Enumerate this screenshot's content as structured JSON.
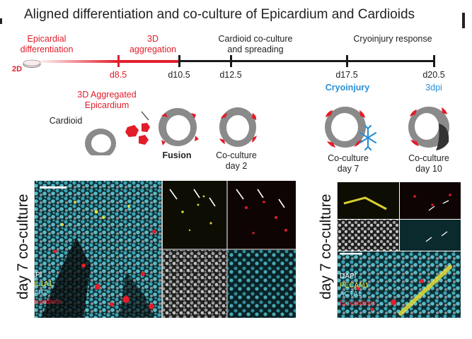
{
  "title": "Aligned differentiation and co-culture of Epicardium and Cardioids",
  "timeline": {
    "start_label": "2D",
    "phases": [
      {
        "id": "epicardial",
        "text": [
          "Epicardial",
          "differentiation"
        ]
      },
      {
        "id": "aggregation",
        "text": [
          "3D",
          "aggregation"
        ]
      },
      {
        "id": "coculture",
        "text": [
          "Cardioid co-culture",
          "and spreading"
        ]
      },
      {
        "id": "cryo",
        "text": [
          "Cryoinjury response"
        ]
      }
    ],
    "ticks": [
      {
        "label": "d8.5"
      },
      {
        "label": "d10.5"
      },
      {
        "label": "d12.5"
      },
      {
        "label": "d17.5",
        "sub": "Cryoinjury"
      },
      {
        "label": "d20.5",
        "sub": "3dpi"
      }
    ]
  },
  "schematic": {
    "cardioid_label": "Cardioid",
    "aggregated_label": [
      "3D Aggregated",
      "Epicardium"
    ],
    "fusion_label": "Fusion",
    "coculture_day2": [
      "Co-culture",
      "day 2"
    ],
    "coculture_day7": [
      "Co-culture",
      "day 7"
    ],
    "coculture_day10": [
      "Co-culture",
      "day 10"
    ]
  },
  "panels": {
    "left": {
      "side_label": "day 7 co-culture",
      "markers": [
        "DAPI",
        "COL1A1",
        "TNNT2",
        "Epicardium"
      ],
      "marker_colors": [
        "#ffffff",
        "#e8e23a",
        "#9fd9e6",
        "#e21d2a"
      ]
    },
    "right": {
      "side_label": "day 7 co-culture",
      "markers": [
        "DAPI",
        "PECAM1",
        "ACTA1",
        "Epicardium"
      ],
      "marker_colors": [
        "#ffffff",
        "#e8e23a",
        "#9fd9e6",
        "#e21d2a"
      ]
    }
  },
  "colors": {
    "epicardium": "#e21d2a",
    "cryoinjury": "#2a8fd6",
    "nuclei_cyan": "#3aa6b4",
    "timeline": "#1a1a1a"
  }
}
